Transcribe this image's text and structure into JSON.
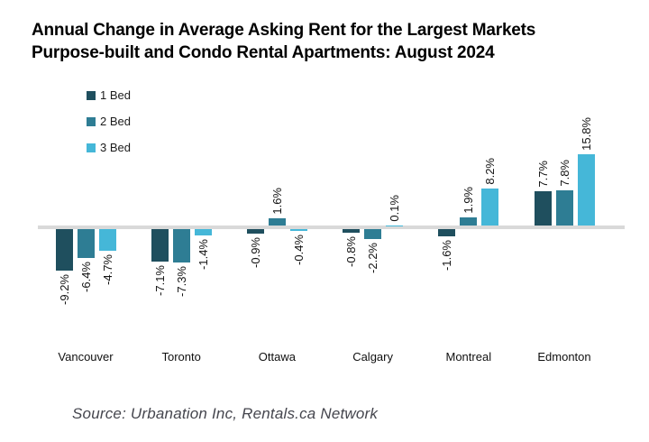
{
  "title": {
    "line1": "Annual Change in Average Asking Rent for the Largest Markets",
    "line2": "Purpose-built and Condo Rental Apartments: August 2024"
  },
  "legend": [
    {
      "label": "1 Bed",
      "color": "#1f4f5e"
    },
    {
      "label": "2 Bed",
      "color": "#2e7d94"
    },
    {
      "label": "3 Bed",
      "color": "#45b7d8"
    }
  ],
  "source": "Source: Urbanation Inc, Rentals.ca Network",
  "colors": {
    "axis_line": "#d9d9d9",
    "text": "#141414"
  },
  "chart_data": {
    "type": "bar",
    "title": "Annual Change in Average Asking Rent for the Largest Markets Purpose-built and Condo Rental Apartments: August 2024",
    "categories": [
      "Vancouver",
      "Toronto",
      "Ottawa",
      "Calgary",
      "Montreal",
      "Edmonton"
    ],
    "series": [
      {
        "name": "1 Bed",
        "color": "#1f4f5e",
        "values": [
          -9.2,
          -7.1,
          -0.9,
          -0.8,
          -1.6,
          7.7
        ]
      },
      {
        "name": "2 Bed",
        "color": "#2e7d94",
        "values": [
          -6.4,
          -7.3,
          1.6,
          -2.2,
          1.9,
          7.8
        ]
      },
      {
        "name": "3 Bed",
        "color": "#45b7d8",
        "values": [
          -4.7,
          -1.4,
          -0.4,
          0.1,
          8.2,
          15.8
        ]
      }
    ],
    "value_label_format": "{value}%",
    "value_labels_rotated_degrees": 90,
    "xlabel": "",
    "ylabel": "",
    "ylim": [
      -10,
      16
    ],
    "baseline": 0,
    "grid": false,
    "y_axis_ticks_visible": false,
    "legend_position": "top-left"
  }
}
